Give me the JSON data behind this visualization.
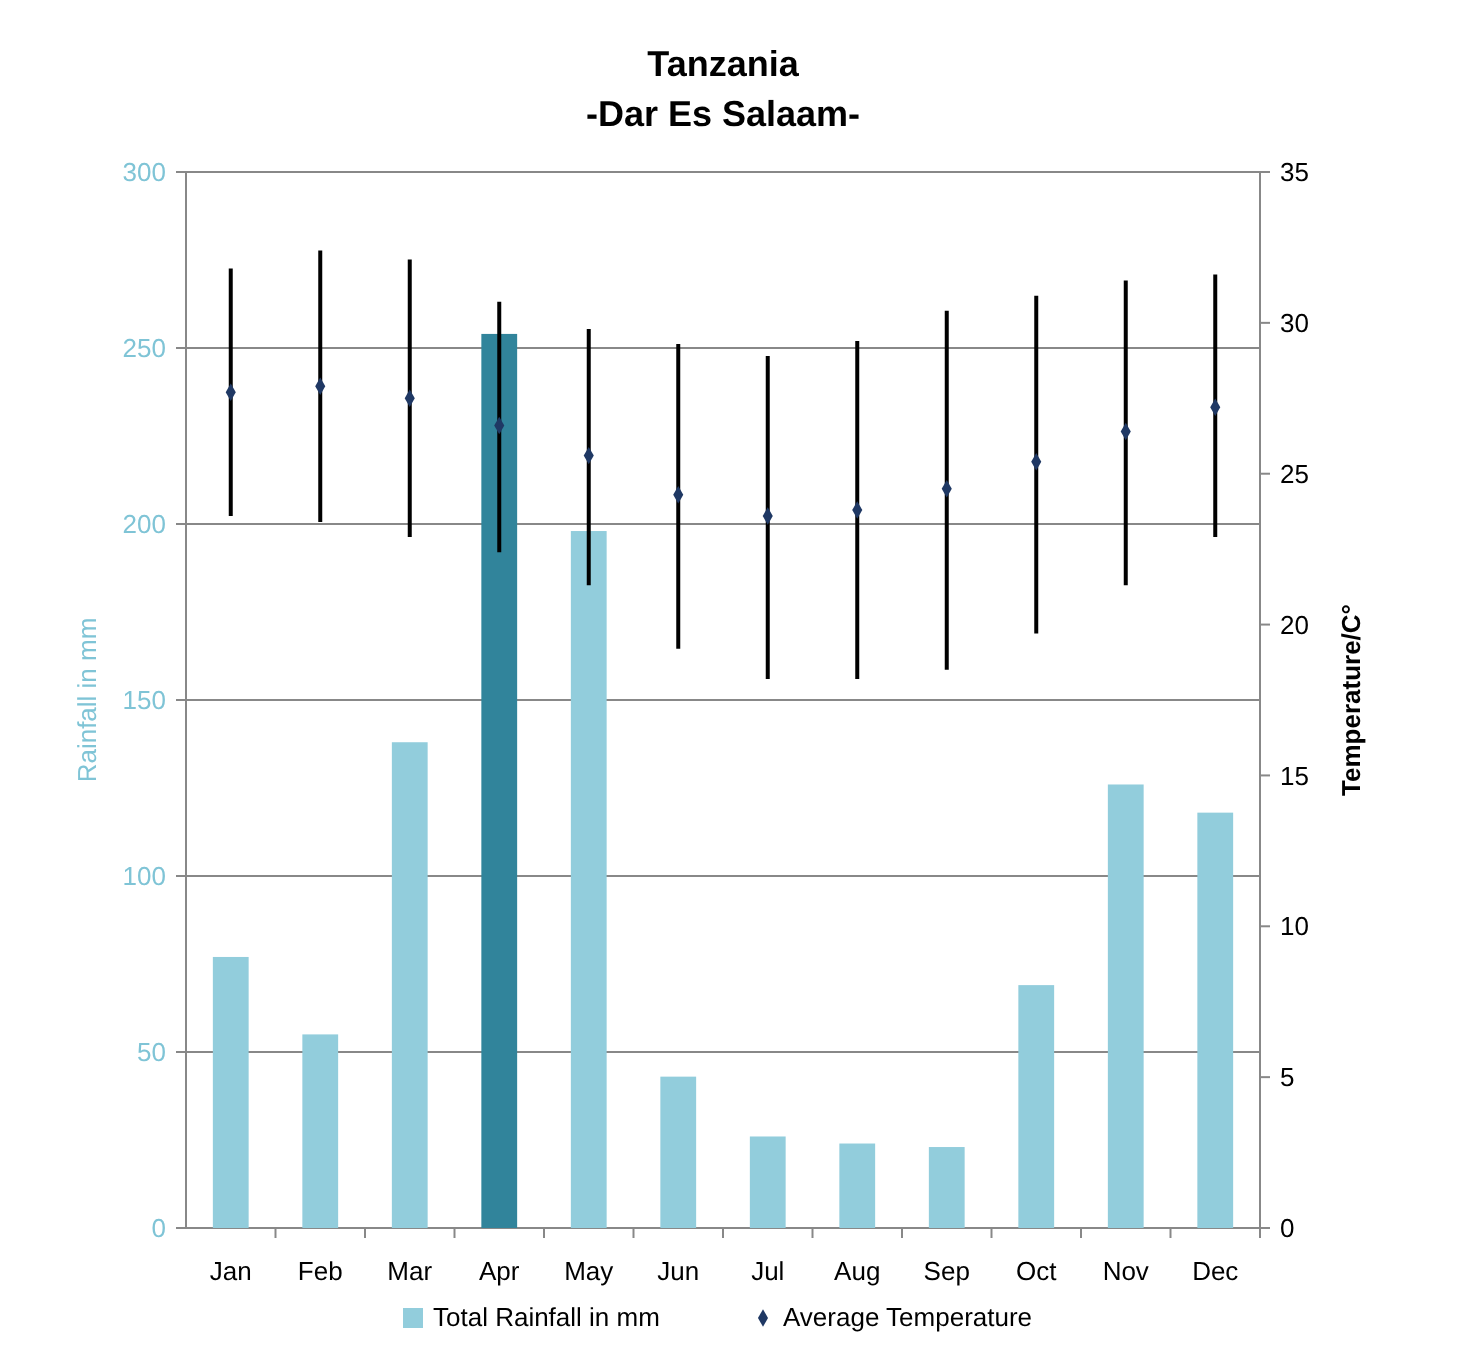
{
  "chart_data": {
    "type": "bar",
    "title": "Tanzania",
    "subtitle": "-Dar Es Salaam-",
    "ylabel": "Rainfall in mm",
    "y2label": "Temperature/C°",
    "categories": [
      "Jan",
      "Feb",
      "Mar",
      "Apr",
      "May",
      "Jun",
      "Jul",
      "Aug",
      "Sep",
      "Oct",
      "Nov",
      "Dec"
    ],
    "series": [
      {
        "name": "Total Rainfall in mm",
        "color": "#92cddc",
        "colors": [
          "#92cddc",
          "#92cddc",
          "#92cddc",
          "#31849b",
          "#92cddc",
          "#92cddc",
          "#92cddc",
          "#92cddc",
          "#92cddc",
          "#92cddc",
          "#92cddc",
          "#92cddc"
        ],
        "values": [
          77,
          55,
          138,
          254,
          198,
          43,
          26,
          24,
          23,
          69,
          126,
          118
        ]
      },
      {
        "name": "Average Temperature",
        "type": "scatter",
        "axis": "y2",
        "color": "#1f3864",
        "marker": "diamond",
        "values": [
          27.7,
          27.9,
          27.5,
          26.6,
          25.6,
          24.3,
          23.6,
          23.8,
          24.5,
          25.4,
          26.4,
          27.2
        ],
        "errors": [
          [
            23.6,
            31.8
          ],
          [
            23.4,
            32.4
          ],
          [
            22.9,
            32.1
          ],
          [
            22.4,
            30.7
          ],
          [
            21.3,
            29.8
          ],
          [
            19.2,
            29.3
          ],
          [
            18.2,
            28.9
          ],
          [
            18.2,
            29.4
          ],
          [
            18.5,
            30.4
          ],
          [
            19.7,
            30.9
          ],
          [
            21.3,
            31.4
          ],
          [
            22.9,
            31.6
          ]
        ]
      }
    ],
    "ylim": [
      0,
      300
    ],
    "yticks": [
      0,
      50,
      100,
      150,
      200,
      250,
      300
    ],
    "y2lim": [
      0,
      35
    ],
    "y2ticks": [
      0,
      5,
      10,
      15,
      20,
      25,
      30,
      35
    ],
    "grid": "y",
    "legend": "bottom"
  }
}
